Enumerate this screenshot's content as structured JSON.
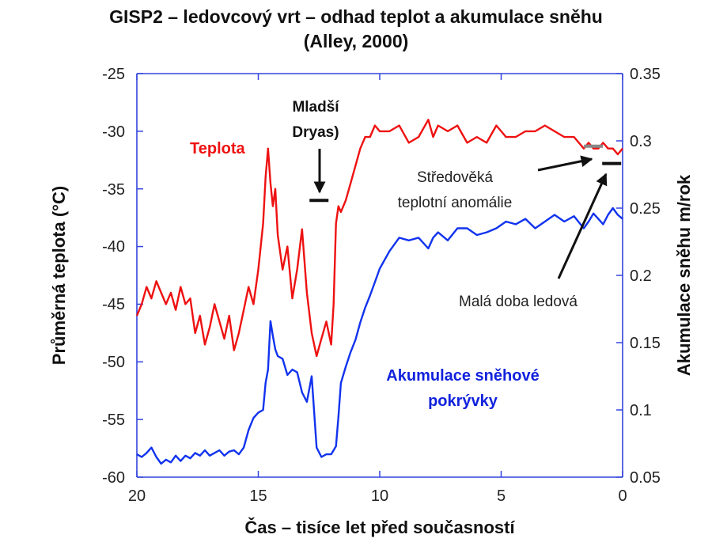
{
  "title": {
    "line1": "GISP2 – ledovcový vrt – odhad teplot a akumulace sněhu",
    "line2": "(Alley, 2000)"
  },
  "chart_data": {
    "type": "line",
    "xlabel": "Čas – tisíce let před současností",
    "ylabel_left": "Průměrná teplota (°C)",
    "ylabel_right": "Akumulace sněhu m/rok",
    "xlim": [
      20,
      0
    ],
    "x_reversed": true,
    "ylim_left": [
      -60,
      -25
    ],
    "ylim_right": [
      0.05,
      0.35
    ],
    "x_ticks": [
      "20",
      "15",
      "10",
      "5",
      "0"
    ],
    "y_left_ticks": [
      "-25",
      "-30",
      "-35",
      "-40",
      "-45",
      "-50",
      "-55",
      "-60"
    ],
    "y_right_ticks": [
      "0.35",
      "0.3",
      "0.25",
      "0.2",
      "0.15",
      "0.1",
      "0.05"
    ],
    "series": [
      {
        "name": "Teplota",
        "axis": "left",
        "color": "#ee1111",
        "x": [
          20.0,
          19.8,
          19.6,
          19.4,
          19.2,
          19.0,
          18.8,
          18.6,
          18.4,
          18.2,
          18.0,
          17.8,
          17.6,
          17.4,
          17.2,
          17.0,
          16.8,
          16.6,
          16.4,
          16.2,
          16.0,
          15.8,
          15.6,
          15.4,
          15.2,
          15.0,
          14.8,
          14.7,
          14.6,
          14.5,
          14.4,
          14.3,
          14.2,
          14.0,
          13.8,
          13.6,
          13.4,
          13.2,
          13.0,
          12.8,
          12.6,
          12.4,
          12.2,
          12.0,
          11.9,
          11.8,
          11.7,
          11.6,
          11.4,
          11.2,
          11.0,
          10.8,
          10.6,
          10.4,
          10.2,
          10.0,
          9.6,
          9.2,
          8.8,
          8.4,
          8.0,
          7.8,
          7.6,
          7.2,
          6.8,
          6.4,
          6.0,
          5.6,
          5.2,
          4.8,
          4.4,
          4.0,
          3.6,
          3.2,
          2.8,
          2.4,
          2.0,
          1.6,
          1.4,
          1.2,
          1.0,
          0.8,
          0.6,
          0.4,
          0.2,
          0.0
        ],
        "values": [
          -46.0,
          -45.0,
          -43.5,
          -44.5,
          -43.0,
          -44.0,
          -45.0,
          -44.0,
          -45.5,
          -43.5,
          -45.0,
          -44.5,
          -47.5,
          -46.0,
          -48.5,
          -47.0,
          -45.0,
          -46.5,
          -48.0,
          -46.0,
          -49.0,
          -47.5,
          -45.5,
          -43.5,
          -45.0,
          -42.0,
          -38.0,
          -34.0,
          -31.5,
          -34.5,
          -36.5,
          -35.0,
          -39.0,
          -42.0,
          -40.0,
          -44.5,
          -42.0,
          -38.5,
          -44.0,
          -47.5,
          -49.5,
          -48.0,
          -46.5,
          -48.5,
          -45.0,
          -38.0,
          -36.5,
          -37.0,
          -36.0,
          -34.5,
          -33.0,
          -31.5,
          -30.5,
          -30.5,
          -29.5,
          -30.0,
          -30.0,
          -29.5,
          -31.0,
          -30.5,
          -29.0,
          -30.5,
          -29.5,
          -30.0,
          -29.5,
          -31.0,
          -30.5,
          -31.0,
          -29.5,
          -30.5,
          -30.5,
          -30.0,
          -30.0,
          -29.5,
          -30.0,
          -30.5,
          -30.5,
          -31.5,
          -31.0,
          -31.5,
          -31.5,
          -31.0,
          -31.5,
          -31.5,
          -32.0,
          -31.5
        ]
      },
      {
        "name": "Akumulace sněhové pokrývky",
        "axis": "right",
        "color": "#1133ee",
        "x": [
          20.0,
          19.8,
          19.6,
          19.4,
          19.2,
          19.0,
          18.8,
          18.6,
          18.4,
          18.2,
          18.0,
          17.8,
          17.6,
          17.4,
          17.2,
          17.0,
          16.8,
          16.6,
          16.4,
          16.2,
          16.0,
          15.8,
          15.6,
          15.4,
          15.2,
          15.0,
          14.8,
          14.7,
          14.6,
          14.5,
          14.4,
          14.3,
          14.2,
          14.0,
          13.8,
          13.6,
          13.4,
          13.2,
          13.0,
          12.8,
          12.6,
          12.4,
          12.2,
          12.0,
          11.9,
          11.8,
          11.7,
          11.6,
          11.4,
          11.2,
          11.0,
          10.8,
          10.6,
          10.4,
          10.2,
          10.0,
          9.6,
          9.2,
          8.8,
          8.4,
          8.0,
          7.8,
          7.6,
          7.2,
          6.8,
          6.4,
          6.0,
          5.6,
          5.2,
          4.8,
          4.4,
          4.0,
          3.6,
          3.2,
          2.8,
          2.4,
          2.0,
          1.6,
          1.4,
          1.2,
          1.0,
          0.8,
          0.6,
          0.4,
          0.2,
          0.0
        ],
        "values": [
          0.067,
          0.065,
          0.068,
          0.072,
          0.065,
          0.06,
          0.063,
          0.061,
          0.066,
          0.062,
          0.066,
          0.064,
          0.068,
          0.066,
          0.07,
          0.066,
          0.068,
          0.07,
          0.066,
          0.069,
          0.07,
          0.067,
          0.072,
          0.085,
          0.094,
          0.098,
          0.1,
          0.12,
          0.13,
          0.166,
          0.155,
          0.145,
          0.14,
          0.138,
          0.126,
          0.13,
          0.128,
          0.113,
          0.106,
          0.125,
          0.072,
          0.065,
          0.067,
          0.067,
          0.07,
          0.073,
          0.095,
          0.12,
          0.132,
          0.143,
          0.152,
          0.165,
          0.176,
          0.185,
          0.195,
          0.205,
          0.218,
          0.228,
          0.226,
          0.228,
          0.22,
          0.228,
          0.232,
          0.226,
          0.235,
          0.235,
          0.23,
          0.232,
          0.235,
          0.24,
          0.238,
          0.242,
          0.235,
          0.24,
          0.245,
          0.24,
          0.244,
          0.235,
          0.24,
          0.246,
          0.242,
          0.238,
          0.245,
          0.25,
          0.245,
          0.242
        ]
      }
    ],
    "markers": [
      {
        "x": 12.5,
        "value": -36,
        "axis": "left"
      },
      {
        "x": 0.45,
        "value": -32.8,
        "axis": "left"
      },
      {
        "x": 1.2,
        "value": -31.3,
        "axis": "left"
      }
    ]
  },
  "annotations": {
    "teplota": "Teplota",
    "mladsi_dryas_1": "Mladší",
    "mladsi_dryas_2": "Dryas)",
    "stredoveka_1": "Středověká",
    "stredoveka_2": "teplotní anomálie",
    "mala_doba": "Malá doba ledová",
    "akumulace_1": "Akumulace sněhové",
    "akumulace_2": "pokrývky"
  }
}
